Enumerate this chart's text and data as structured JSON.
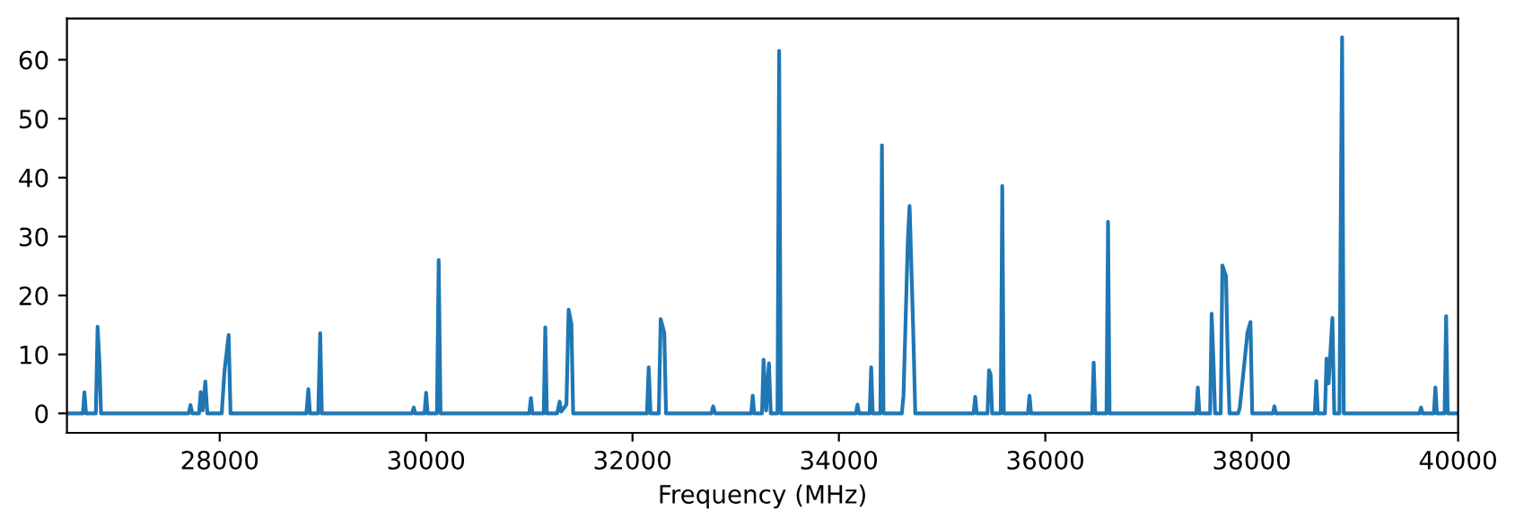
{
  "chart_data": {
    "type": "line",
    "xlabel": "Frequency (MHz)",
    "xlim": [
      26520,
      40000
    ],
    "xticks": [
      28000,
      30000,
      32000,
      34000,
      36000,
      38000,
      40000
    ],
    "ylim": [
      -3.3,
      67
    ],
    "yticks": [
      0,
      10,
      20,
      30,
      40,
      50,
      60
    ],
    "grid": false,
    "marker": "none",
    "line_style": "solid",
    "series": [
      {
        "color": "#1f77b4",
        "x": [
          26530,
          26675,
          26689,
          26705,
          26800,
          26817,
          26835,
          26850,
          27700,
          27717,
          27735,
          27800,
          27816,
          27835,
          27861,
          27880,
          28020,
          28047,
          28087,
          28105,
          28840,
          28859,
          28875,
          28955,
          28974,
          28990,
          29865,
          29880,
          29895,
          29985,
          30000,
          30015,
          30105,
          30122,
          30140,
          31000,
          31016,
          31030,
          31140,
          31155,
          31170,
          31270,
          31294,
          31310,
          31360,
          31381,
          31408,
          31425,
          32140,
          32157,
          32175,
          32255,
          32273,
          32308,
          32325,
          32765,
          32782,
          32800,
          33150,
          33165,
          33180,
          33255,
          33270,
          33295,
          33322,
          33340,
          33405,
          33421,
          33437,
          34165,
          34180,
          34195,
          34298,
          34313,
          34328,
          34402,
          34417,
          34432,
          34610,
          34626,
          34668,
          34685,
          34720,
          34740,
          35305,
          35321,
          35336,
          35440,
          35455,
          35470,
          35485,
          35568,
          35583,
          35598,
          35832,
          35847,
          35862,
          36454,
          36469,
          36484,
          36593,
          36608,
          36623,
          37463,
          37478,
          37493,
          37597,
          37612,
          37630,
          37645,
          37700,
          37716,
          37751,
          37770,
          37785,
          37870,
          37885,
          37959,
          37988,
          38005,
          38205,
          38220,
          38235,
          38611,
          38626,
          38641,
          38710,
          38725,
          38745,
          38782,
          38800,
          38850,
          38864,
          38876,
          38892,
          39626,
          39641,
          39656,
          39765,
          39780,
          39795,
          39869,
          39884,
          39899,
          40000
        ],
        "values": [
          0,
          0,
          3.6,
          0,
          0,
          14.7,
          8.6,
          0,
          0,
          1.4,
          0,
          0,
          3.6,
          0.5,
          5.4,
          0,
          0,
          7.3,
          13.3,
          0,
          0,
          4.1,
          0,
          0,
          13.6,
          0,
          0,
          1.0,
          0,
          0,
          3.5,
          0,
          0,
          26.0,
          0,
          0,
          2.6,
          0,
          0,
          14.6,
          0,
          0,
          2.0,
          0.3,
          1.5,
          17.6,
          15.2,
          0,
          0,
          7.8,
          0,
          0,
          16.0,
          13.7,
          0,
          0,
          1.2,
          0,
          0,
          3.0,
          0,
          0,
          9.1,
          0.5,
          8.5,
          0,
          0,
          61.5,
          0,
          0,
          1.5,
          0,
          0,
          7.8,
          0,
          0,
          45.5,
          0,
          0,
          3.0,
          29.4,
          35.2,
          14.2,
          0,
          0,
          2.8,
          0,
          0,
          7.3,
          6.6,
          0,
          0,
          38.6,
          0,
          0,
          3.0,
          0,
          0,
          8.6,
          0,
          0,
          32.5,
          0,
          0,
          4.4,
          0,
          0,
          16.9,
          8.6,
          0,
          0,
          25.1,
          23.3,
          8.1,
          0,
          0,
          1.0,
          13.7,
          15.5,
          0,
          0,
          1.2,
          0,
          0,
          5.5,
          0,
          0,
          9.3,
          5.1,
          16.2,
          0,
          0,
          36,
          63.8,
          0,
          0,
          1.0,
          0,
          0,
          4.4,
          0,
          0,
          16.5,
          0,
          0
        ]
      }
    ]
  }
}
